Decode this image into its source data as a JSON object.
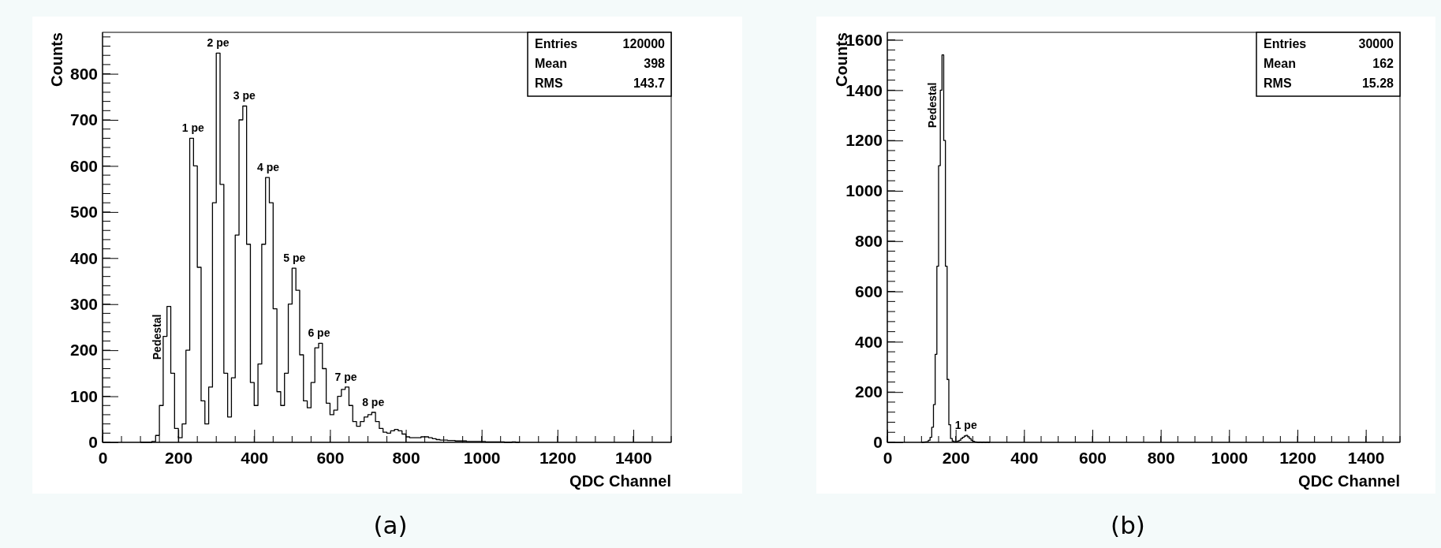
{
  "chart_data": [
    {
      "type": "histogram",
      "title": "(a)",
      "xlabel": "QDC Channel",
      "ylabel": "Counts",
      "color": "#000000",
      "bins": [
        100,
        110,
        120,
        130,
        140,
        150,
        160,
        170,
        180,
        190,
        200,
        210,
        220,
        230,
        240,
        250,
        260,
        270,
        280,
        290,
        300,
        310,
        320,
        330,
        340,
        350,
        360,
        370,
        380,
        390,
        400,
        410,
        420,
        430,
        440,
        450,
        460,
        470,
        480,
        490,
        500,
        510,
        520,
        530,
        540,
        550,
        560,
        570,
        580,
        590,
        600,
        610,
        620,
        630,
        640,
        650,
        660,
        670,
        680,
        690,
        700,
        710,
        720,
        730,
        740,
        750,
        760,
        770,
        780,
        790,
        800,
        810,
        820,
        830,
        840,
        850,
        860,
        870,
        880,
        890,
        900,
        910,
        920,
        930,
        940,
        950,
        960,
        970,
        980,
        990,
        1000,
        1010,
        1020,
        1030,
        1040,
        1050,
        1060,
        1070,
        1080,
        1090,
        1100
      ],
      "values": [
        0,
        0,
        0,
        2,
        15,
        80,
        230,
        295,
        150,
        30,
        10,
        40,
        200,
        660,
        600,
        380,
        90,
        40,
        120,
        520,
        845,
        560,
        150,
        55,
        140,
        450,
        700,
        730,
        430,
        130,
        80,
        170,
        430,
        575,
        520,
        290,
        110,
        80,
        150,
        300,
        378,
        330,
        190,
        90,
        75,
        130,
        205,
        215,
        160,
        85,
        60,
        70,
        100,
        115,
        120,
        80,
        45,
        35,
        45,
        55,
        60,
        65,
        45,
        30,
        22,
        20,
        25,
        28,
        25,
        18,
        12,
        10,
        10,
        10,
        12,
        12,
        10,
        8,
        6,
        5,
        5,
        4,
        4,
        3,
        3,
        3,
        2,
        2,
        2,
        2,
        2,
        1,
        1,
        1,
        1,
        1,
        0,
        0,
        1,
        0
      ],
      "xlim": [
        0,
        1500
      ],
      "ylim": [
        0,
        890
      ],
      "xticks": [
        0,
        200,
        400,
        600,
        800,
        1000,
        1200,
        1400
      ],
      "yticks": [
        0,
        100,
        200,
        300,
        400,
        500,
        600,
        700,
        800
      ],
      "annotations": [
        "Entries",
        "120000",
        "Mean",
        "398",
        "RMS",
        "143.7",
        {
          "text": "Pedestal",
          "x": 171,
          "y": 295
        },
        {
          "text": "1 pe",
          "x": 239,
          "y": 660
        },
        {
          "text": "2 pe",
          "x": 305,
          "y": 845
        },
        {
          "text": "3 pe",
          "x": 374,
          "y": 730
        },
        {
          "text": "4 pe",
          "x": 437,
          "y": 575
        },
        {
          "text": "5 pe",
          "x": 506,
          "y": 378
        },
        {
          "text": "6 pe",
          "x": 571,
          "y": 215
        },
        {
          "text": "7 pe",
          "x": 642,
          "y": 120
        },
        {
          "text": "8 pe",
          "x": 714,
          "y": 65
        }
      ]
    },
    {
      "type": "histogram",
      "title": "(b)",
      "xlabel": "QDC Channel",
      "ylabel": "Counts",
      "color": "#000000",
      "bins": [
        100,
        105,
        110,
        115,
        120,
        125,
        130,
        135,
        140,
        145,
        150,
        155,
        160,
        165,
        170,
        175,
        180,
        185,
        190,
        195,
        200,
        205,
        210,
        215,
        220,
        225,
        230,
        235,
        240,
        245,
        250,
        255,
        260,
        265,
        270,
        275,
        280,
        285,
        290,
        295,
        300
      ],
      "values": [
        0,
        1,
        2,
        3,
        8,
        20,
        60,
        150,
        350,
        700,
        1100,
        1400,
        1540,
        1200,
        700,
        250,
        70,
        15,
        5,
        3,
        3,
        5,
        8,
        15,
        20,
        25,
        28,
        22,
        15,
        8,
        4,
        2,
        1,
        0,
        1,
        0,
        1,
        0,
        1,
        0
      ],
      "xlim": [
        0,
        1500
      ],
      "ylim": [
        0,
        1630
      ],
      "xticks": [
        0,
        200,
        400,
        600,
        800,
        1000,
        1200,
        1400
      ],
      "yticks": [
        0,
        200,
        400,
        600,
        800,
        1000,
        1200,
        1400,
        1600
      ],
      "annotations": [
        "Entries",
        "30000",
        "Mean",
        "162",
        "RMS",
        "15.28",
        {
          "text": "Pedestal",
          "x": 161,
          "y": 1545
        },
        {
          "text": "1 pe",
          "x": 230,
          "y": 28
        }
      ]
    }
  ]
}
